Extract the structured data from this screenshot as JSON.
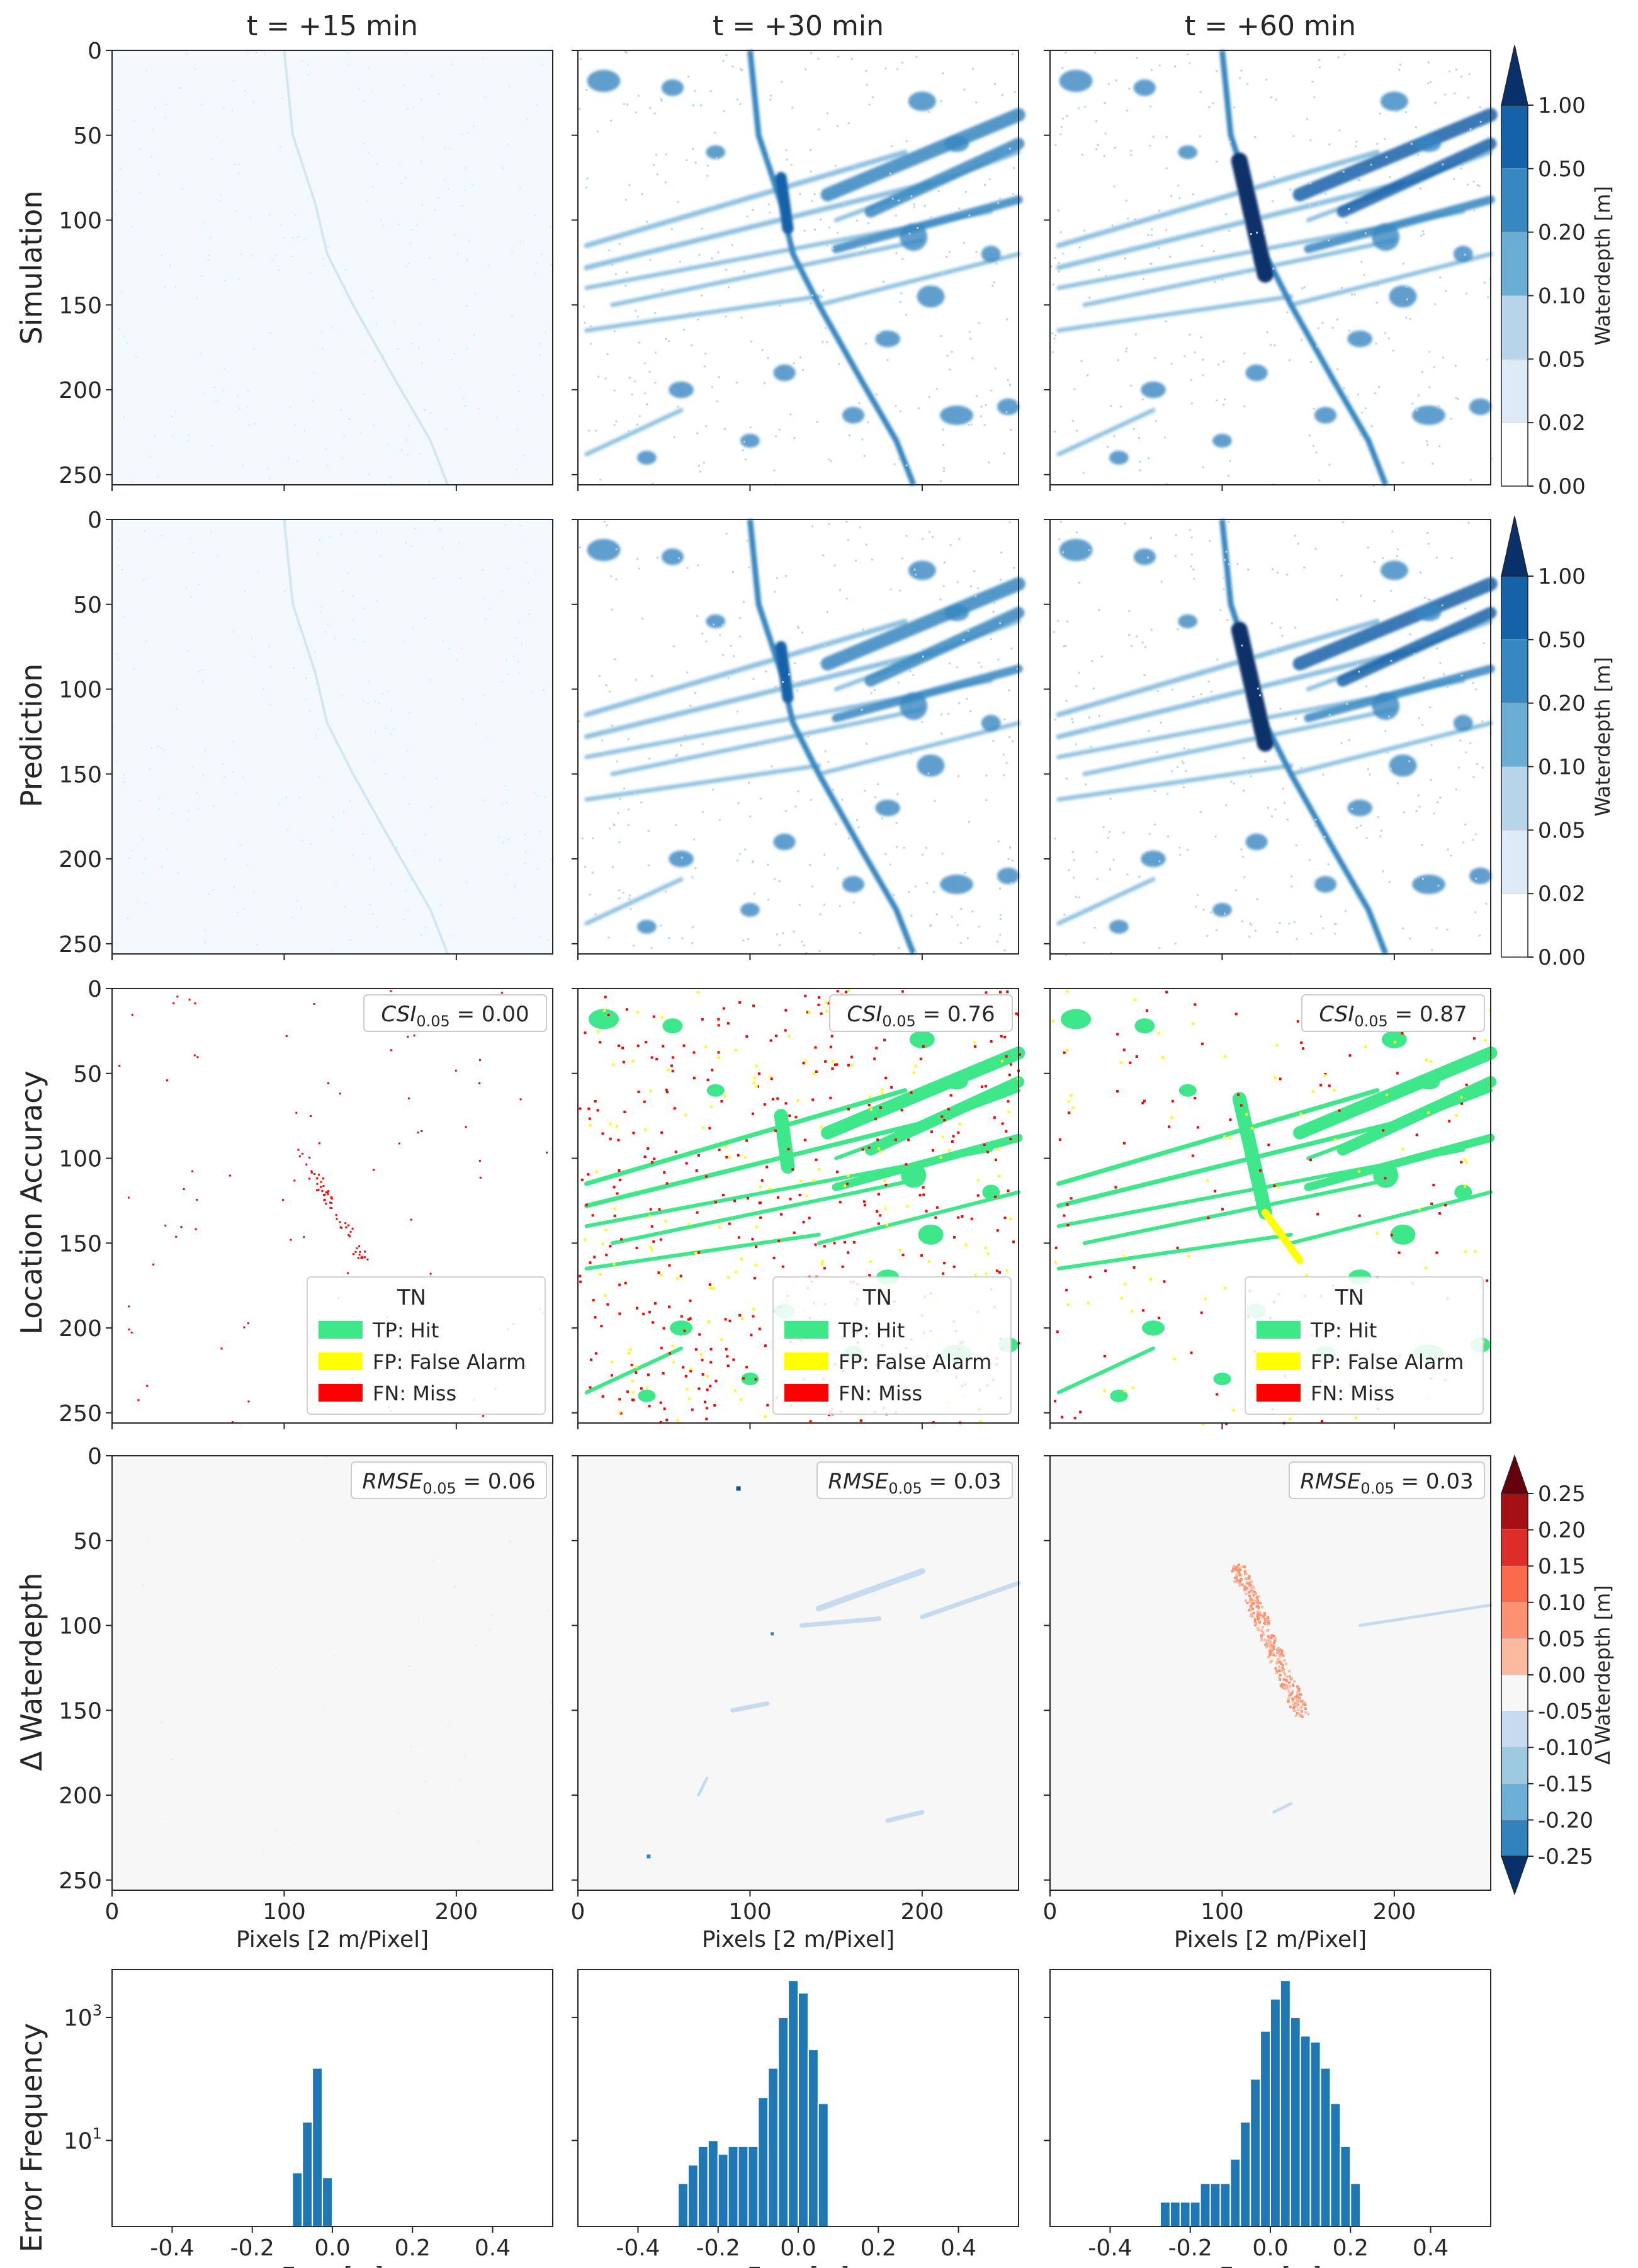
{
  "columns": [
    "t = +15 min",
    "t = +30 min",
    "t = +60 min"
  ],
  "row_labels": [
    "Simulation",
    "Prediction",
    "Location Accuracy",
    "Δ Waterdepth",
    "Error Frequency"
  ],
  "map_axis": {
    "ticks": [
      0,
      50,
      100,
      150,
      200,
      250
    ],
    "x_ticks": [
      0,
      100,
      200
    ],
    "range": [
      0,
      256
    ],
    "xlabel": "Pixels [2 m/Pixel]"
  },
  "colors": {
    "depth": [
      "#ffffff",
      "#deebf7",
      "#b7d4ea",
      "#6aaed6",
      "#3787c0",
      "#1562a9",
      "#08306b"
    ],
    "diff": [
      "#08519c",
      "#3182bd",
      "#6baed6",
      "#9ecae1",
      "#c6dbef",
      "#f7f7f7",
      "#fcbba1",
      "#fc9272",
      "#fb6a4a",
      "#de2d26",
      "#a50f15",
      "#67000d"
    ],
    "tp": "#3ee88a",
    "fp": "#ffff00",
    "fn": "#ff0000",
    "hist_bar": "#1f77b4"
  },
  "depth_colorbar": {
    "label": "Waterdepth [m]",
    "ticks": [
      "0.00",
      "0.02",
      "0.05",
      "0.10",
      "0.20",
      "0.50",
      "1.00"
    ]
  },
  "diff_colorbar": {
    "label": "Δ Waterdepth [m]",
    "ticks": [
      "-0.25",
      "-0.20",
      "-0.15",
      "-0.10",
      "-0.05",
      "0.00",
      "0.05",
      "0.10",
      "0.15",
      "0.20",
      "0.25"
    ]
  },
  "legend": {
    "title": "TN",
    "entries": [
      "TP: Hit",
      "FP: False Alarm",
      "FN: Miss"
    ]
  },
  "csi": [
    {
      "label": "CSI",
      "sub": "0.05",
      "value": "= 0.00"
    },
    {
      "label": "CSI",
      "sub": "0.05",
      "value": "= 0.76"
    },
    {
      "label": "CSI",
      "sub": "0.05",
      "value": "= 0.87"
    }
  ],
  "rmse": [
    {
      "label": "RMSE",
      "sub": "0.05",
      "value": "= 0.06"
    },
    {
      "label": "RMSE",
      "sub": "0.05",
      "value": "= 0.03"
    },
    {
      "label": "RMSE",
      "sub": "0.05",
      "value": "= 0.03"
    }
  ],
  "chart_data": {
    "type": "bar",
    "xlabel": "Error [m]",
    "ylabel": "Error Frequency",
    "x_ticks": [
      "-0.4",
      "-0.2",
      "0.0",
      "0.2",
      "0.4"
    ],
    "xlim": [
      -0.55,
      0.55
    ],
    "yscale": "log",
    "y_ticks": [
      {
        "base": "10",
        "exp": "1",
        "value": 10
      },
      {
        "base": "10",
        "exp": "3",
        "value": 1000
      }
    ],
    "bin_width": 0.025,
    "series": [
      {
        "bins": [
          {
            "x": -0.1,
            "y": 3
          },
          {
            "x": -0.075,
            "y": 20
          },
          {
            "x": -0.05,
            "y": 150
          },
          {
            "x": -0.025,
            "y": 2.5
          }
        ]
      },
      {
        "bins": [
          {
            "x": -0.3,
            "y": 2
          },
          {
            "x": -0.275,
            "y": 4
          },
          {
            "x": -0.25,
            "y": 8
          },
          {
            "x": -0.225,
            "y": 10
          },
          {
            "x": -0.2,
            "y": 6
          },
          {
            "x": -0.175,
            "y": 8
          },
          {
            "x": -0.15,
            "y": 8
          },
          {
            "x": -0.125,
            "y": 8
          },
          {
            "x": -0.1,
            "y": 50
          },
          {
            "x": -0.075,
            "y": 150
          },
          {
            "x": -0.05,
            "y": 1000
          },
          {
            "x": -0.025,
            "y": 4000
          },
          {
            "x": 0.0,
            "y": 2500
          },
          {
            "x": 0.025,
            "y": 300
          },
          {
            "x": 0.05,
            "y": 40
          }
        ]
      },
      {
        "bins": [
          {
            "x": -0.275,
            "y": 1
          },
          {
            "x": -0.25,
            "y": 1
          },
          {
            "x": -0.225,
            "y": 1
          },
          {
            "x": -0.2,
            "y": 1
          },
          {
            "x": -0.175,
            "y": 2
          },
          {
            "x": -0.15,
            "y": 2
          },
          {
            "x": -0.125,
            "y": 2
          },
          {
            "x": -0.1,
            "y": 5
          },
          {
            "x": -0.075,
            "y": 20
          },
          {
            "x": -0.05,
            "y": 100
          },
          {
            "x": -0.025,
            "y": 600
          },
          {
            "x": 0.0,
            "y": 2000
          },
          {
            "x": 0.025,
            "y": 4000
          },
          {
            "x": 0.05,
            "y": 1000
          },
          {
            "x": 0.075,
            "y": 500
          },
          {
            "x": 0.1,
            "y": 400
          },
          {
            "x": 0.125,
            "y": 150
          },
          {
            "x": 0.15,
            "y": 40
          },
          {
            "x": 0.175,
            "y": 8
          },
          {
            "x": 0.2,
            "y": 2
          }
        ]
      }
    ]
  }
}
